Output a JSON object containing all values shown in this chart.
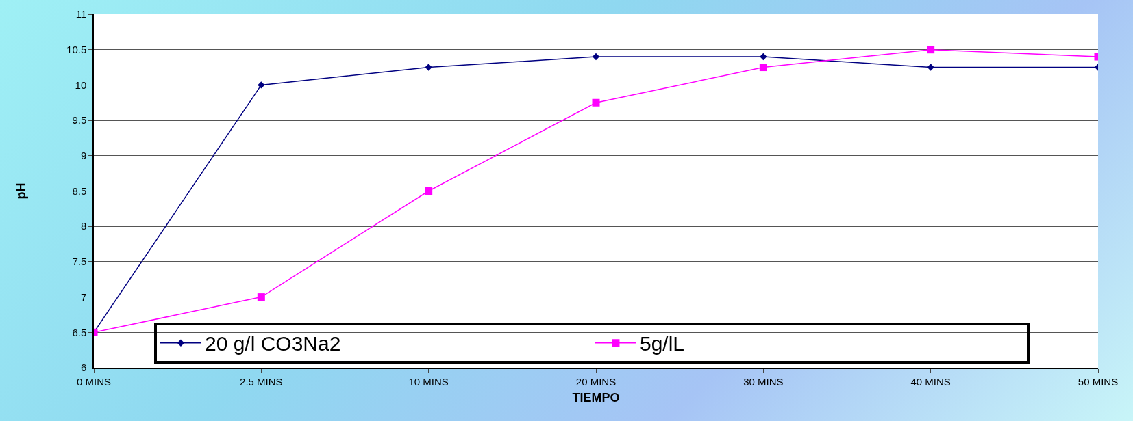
{
  "chart_data": {
    "type": "line",
    "xlabel": "TIEMPO",
    "ylabel": "pH",
    "categories": [
      "0 MINS",
      "2.5 MINS",
      "10 MINS",
      "20 MINS",
      "30 MINS",
      "40 MINS",
      "50 MINS"
    ],
    "series": [
      {
        "name": "20 g/l CO3Na2",
        "color": "#000080",
        "marker": "diamond",
        "values": [
          6.5,
          10,
          10.25,
          10.4,
          10.4,
          10.25,
          10.25
        ]
      },
      {
        "name": "5g/lL",
        "color": "#ff00ff",
        "marker": "square",
        "values": [
          6.5,
          7,
          8.5,
          9.75,
          10.25,
          10.5,
          10.4
        ]
      }
    ],
    "ylim": [
      6,
      11
    ],
    "yticks": [
      6,
      6.5,
      7,
      7.5,
      8,
      8.5,
      9,
      9.5,
      10,
      10.5,
      11
    ],
    "grid": "y",
    "legend": "bottom",
    "line_style": "solid"
  }
}
